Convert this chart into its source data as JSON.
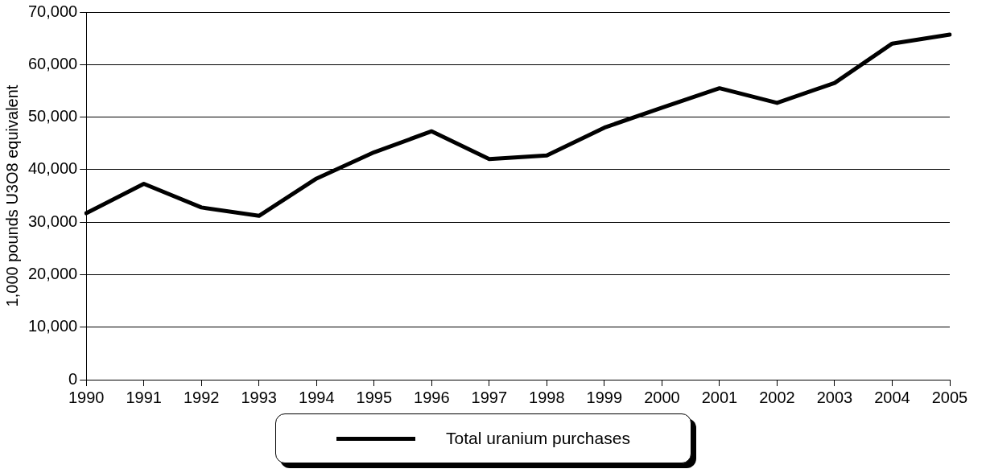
{
  "chart_data": {
    "type": "line",
    "ylabel": "1,000 pounds U3O8 equivalent",
    "categories": [
      "1990",
      "1991",
      "1992",
      "1993",
      "1994",
      "1995",
      "1996",
      "1997",
      "1998",
      "1999",
      "2000",
      "2001",
      "2002",
      "2003",
      "2004",
      "2005"
    ],
    "series": [
      {
        "name": "Total uranium purchases",
        "color": "#000000",
        "values": [
          31700,
          37300,
          32800,
          31200,
          38300,
          43300,
          47300,
          42000,
          42700,
          48000,
          51800,
          55500,
          52700,
          56500,
          64000,
          65700
        ]
      }
    ],
    "ylim": [
      0,
      70000
    ],
    "yticks": [
      0,
      {
        "value": 10000,
        "label": "10,000"
      },
      {
        "value": 20000,
        "label": "20,000"
      },
      {
        "value": 30000,
        "label": "30,000"
      },
      {
        "value": 40000,
        "label": "40,000"
      },
      {
        "value": 50000,
        "label": "50,000"
      },
      {
        "value": 60000,
        "label": "60,000"
      },
      {
        "value": 70000,
        "label": "70,000"
      }
    ],
    "grid": "y",
    "legend": "bottom",
    "marker": "none",
    "line_style": "solid"
  }
}
